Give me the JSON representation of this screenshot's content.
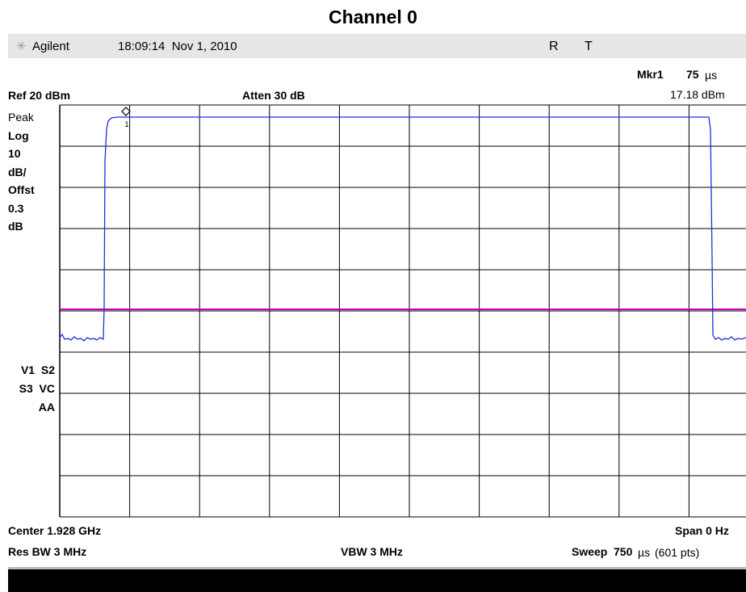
{
  "title": "Channel 0",
  "header": {
    "brand": "Agilent",
    "datetime": "18:09:14  Nov 1, 2010",
    "indicators": [
      "R",
      "T"
    ]
  },
  "marker": {
    "label": "Mkr1",
    "value": "75",
    "unit": "µs",
    "level": "17.18 dBm",
    "number": "1"
  },
  "settings": {
    "reference": "Ref 20 dBm",
    "attenuation": "Atten 30 dB"
  },
  "left_panel": [
    "Peak",
    "Log",
    "10",
    "dB/",
    "Offst",
    "0.3",
    "dB"
  ],
  "status": [
    "V1  S2",
    "S3  VC",
    "AA"
  ],
  "footer": {
    "center": "Center 1.928 GHz",
    "span": "Span 0 Hz",
    "rbw": "Res BW 3 MHz",
    "vbw": "VBW 3 MHz",
    "sweep_label": "Sweep",
    "sweep_value": "750",
    "sweep_unit": "µs",
    "sweep_points": "(601 pts)"
  }
}
